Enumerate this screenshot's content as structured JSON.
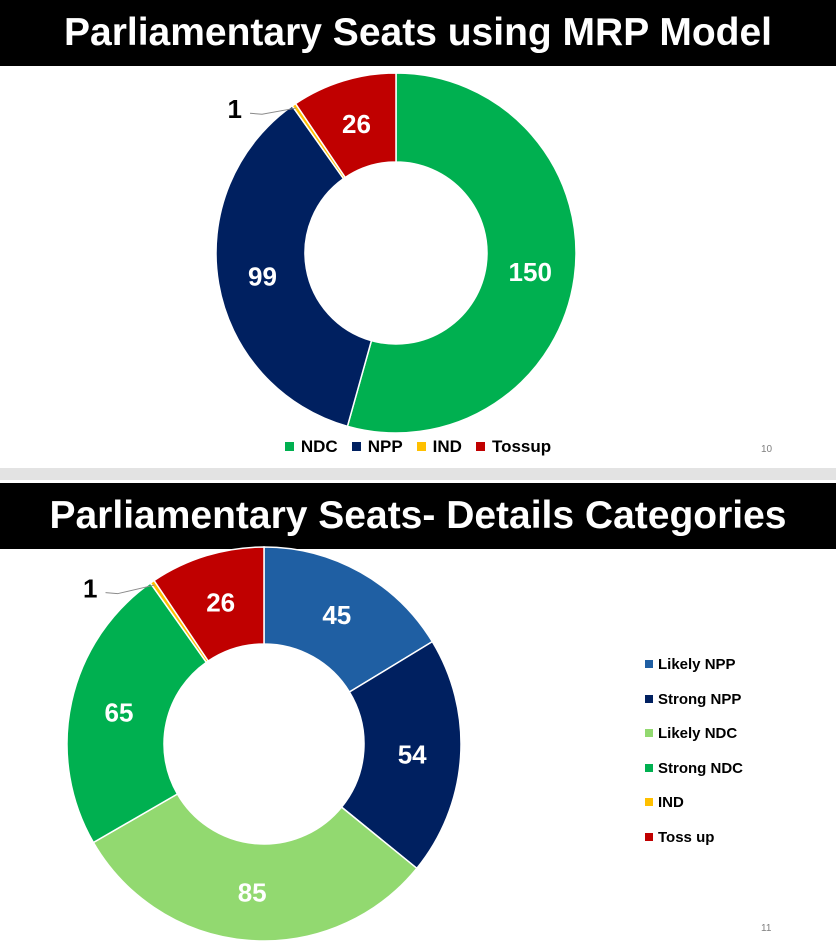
{
  "slide1": {
    "title": "Parliamentary Seats using MRP Model",
    "slide_number": "10"
  },
  "slide2": {
    "title": "Parliamentary Seats- Details Categories",
    "slide_number": "11"
  },
  "chart_data": [
    {
      "type": "pie",
      "title": "Parliamentary Seats using MRP Model",
      "donut": true,
      "legend_position": "bottom",
      "categories": [
        "NDC",
        "NPP",
        "IND",
        "Tossup"
      ],
      "values": [
        150,
        99,
        1,
        26
      ],
      "colors": [
        "#00b050",
        "#002060",
        "#ffc000",
        "#c00000"
      ]
    },
    {
      "type": "pie",
      "title": "Parliamentary Seats- Details Categories",
      "donut": true,
      "legend_position": "right",
      "categories": [
        "Likely NPP",
        "Strong NPP",
        "Likely NDC",
        "Strong NDC",
        "IND",
        "Toss up"
      ],
      "values": [
        45,
        54,
        85,
        65,
        1,
        26
      ],
      "colors": [
        "#1f5fa3",
        "#002060",
        "#92d970",
        "#00b050",
        "#ffc000",
        "#c00000"
      ]
    }
  ]
}
